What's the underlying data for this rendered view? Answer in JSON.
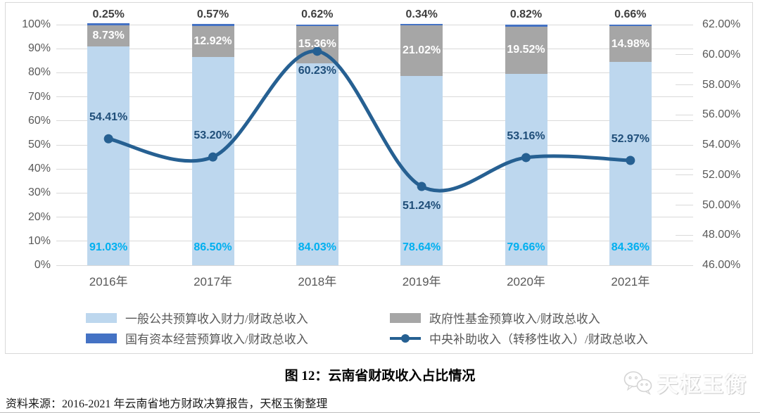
{
  "figure": {
    "source": "资料来源：2016-2021 年云南省地方财政决算报告，天枢玉衡整理",
    "watermark": "天枢玉衡"
  },
  "colors": {
    "bar_general_public": "#BDD7EE",
    "bar_gov_fund": "#A6A6A6",
    "bar_state_capital": "#4472C4",
    "line_central_subsidy": "#266092",
    "label_line": "#1F4E79",
    "label_bottom": "#00B0F0",
    "label_top": "#3F3F3F",
    "label_inside": "#FFFFFF",
    "axis_text": "#595959",
    "gridline": "#D9D9D9",
    "frame_border": "#D9D9D9"
  },
  "chart_data": {
    "type": "combo: stacked-bar (left axis) + smoothed line (right axis)",
    "title": "图 12：云南省财政收入占比情况",
    "categories": [
      "2016年",
      "2017年",
      "2018年",
      "2019年",
      "2020年",
      "2021年"
    ],
    "series": [
      {
        "name": "一般公共预算收入财力/财政总收入",
        "type": "bar",
        "axis": "left",
        "key": "general-public",
        "color_key": "bar_general_public",
        "values": [
          91.03,
          86.5,
          84.03,
          78.64,
          79.66,
          84.36
        ]
      },
      {
        "name": "政府性基金预算收入/财政总收入",
        "type": "bar",
        "axis": "left",
        "key": "gov-fund",
        "color_key": "bar_gov_fund",
        "values": [
          8.73,
          12.92,
          15.36,
          21.02,
          19.52,
          14.98
        ]
      },
      {
        "name": "国有资本经营预算收入/财政总收入",
        "type": "bar",
        "axis": "left",
        "key": "state-capital",
        "color_key": "bar_state_capital",
        "values": [
          0.25,
          0.57,
          0.62,
          0.34,
          0.82,
          0.66
        ]
      },
      {
        "name": "中央补助收入（转移性收入）/财政总收入",
        "type": "line",
        "axis": "right",
        "key": "central-subsidy",
        "color_key": "line_central_subsidy",
        "values": [
          54.41,
          53.2,
          60.23,
          51.24,
          53.16,
          52.97
        ],
        "label_side": [
          "above",
          "above",
          "below",
          "below",
          "above",
          "above"
        ]
      }
    ],
    "left_axis": {
      "min": 0,
      "max": 100,
      "ticks": [
        {
          "label": "100%",
          "value": 100
        },
        {
          "label": "90%",
          "value": 90
        },
        {
          "label": "80%",
          "value": 80
        },
        {
          "label": "70%",
          "value": 70
        },
        {
          "label": "60%",
          "value": 60
        },
        {
          "label": "50%",
          "value": 50
        },
        {
          "label": "40%",
          "value": 40
        },
        {
          "label": "30%",
          "value": 30
        },
        {
          "label": "20%",
          "value": 20
        },
        {
          "label": "10%",
          "value": 10
        },
        {
          "label": "0%",
          "value": 0
        }
      ]
    },
    "right_axis": {
      "min": 46,
      "max": 62,
      "ticks": [
        {
          "label": "62.00%",
          "value": 62
        },
        {
          "label": "60.00%",
          "value": 60
        },
        {
          "label": "58.00%",
          "value": 58
        },
        {
          "label": "56.00%",
          "value": 56
        },
        {
          "label": "54.00%",
          "value": 54
        },
        {
          "label": "52.00%",
          "value": 52
        },
        {
          "label": "50.00%",
          "value": 50
        },
        {
          "label": "48.00%",
          "value": 48
        },
        {
          "label": "46.00%",
          "value": 46
        }
      ]
    },
    "grid": "horizontal gridlines at left-axis 10% steps; short tick stubs at right-axis 2% steps",
    "legend_position": "bottom inside chart frame, 2 rows x 2 columns",
    "bar_label_format": "0.00%"
  }
}
